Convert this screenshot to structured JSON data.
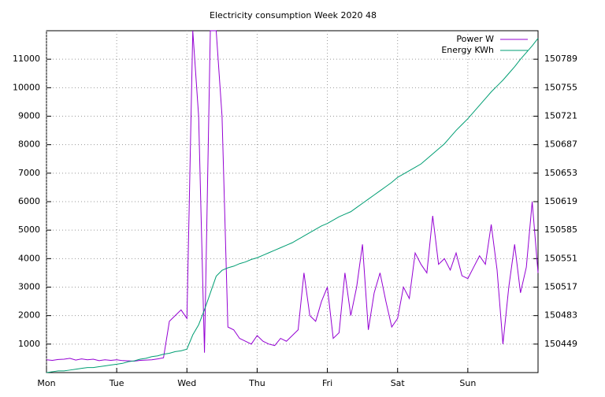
{
  "chart_data": {
    "type": "line",
    "title": "Electricity consumption Week 2020 48",
    "x": [
      0,
      2,
      4,
      6,
      8,
      10,
      12,
      14,
      16,
      18,
      20,
      22,
      24,
      26,
      28,
      30,
      32,
      34,
      36,
      38,
      40,
      42,
      44,
      46,
      48,
      50,
      52,
      54,
      56,
      58,
      60,
      62,
      64,
      66,
      68,
      70,
      72,
      74,
      76,
      78,
      80,
      82,
      84,
      86,
      88,
      90,
      92,
      94,
      96,
      98,
      100,
      102,
      104,
      106,
      108,
      110,
      112,
      114,
      116,
      118,
      120,
      122,
      124,
      126,
      128,
      130,
      132,
      134,
      136,
      138,
      140,
      142,
      144,
      146,
      148,
      150,
      152,
      154,
      156,
      158,
      160,
      162,
      164,
      166,
      168
    ],
    "series": [
      {
        "name": "Power W",
        "color": "#9400d3",
        "values": [
          450,
          430,
          460,
          470,
          500,
          440,
          480,
          450,
          470,
          420,
          450,
          430,
          450,
          420,
          410,
          400,
          430,
          440,
          450,
          480,
          520,
          1800,
          2000,
          2200,
          1900,
          12000,
          9000,
          700,
          12000,
          12000,
          9000,
          1600,
          1500,
          1200,
          1100,
          1000,
          1300,
          1100,
          1000,
          950,
          1200,
          1100,
          1300,
          1500,
          3500,
          2000,
          1800,
          2500,
          3000,
          1200,
          1400,
          3500,
          2000,
          3000,
          4500,
          1500,
          2800,
          3500,
          2500,
          1600,
          1900,
          3000,
          2600,
          4200,
          3800,
          3500,
          5500,
          3800,
          4000,
          3600,
          4200,
          3400,
          3300,
          3700,
          4100,
          3800,
          5200,
          3600,
          1000,
          3000,
          4500,
          2800,
          3700,
          6000,
          3500
        ]
      },
      {
        "name": "Energy KWh",
        "color": "#009e73",
        "axis": "y2",
        "values": [
          150415,
          150416,
          150417,
          150417,
          150418,
          150419,
          150420,
          150421,
          150421,
          150422,
          150423,
          150424,
          150425,
          150426,
          150428,
          150429,
          150431,
          150432,
          150434,
          150435,
          150437,
          150438,
          150440,
          150441,
          150443,
          150460,
          150472,
          150490,
          150510,
          150530,
          150537,
          150540,
          150542,
          150545,
          150547,
          150550,
          150552,
          150555,
          150558,
          150561,
          150564,
          150567,
          150570,
          150574,
          150578,
          150582,
          150586,
          150590,
          150593,
          150597,
          150601,
          150604,
          150607,
          150612,
          150617,
          150622,
          150627,
          150632,
          150637,
          150642,
          150648,
          150652,
          150656,
          150660,
          150664,
          150670,
          150676,
          150682,
          150688,
          150696,
          150704,
          150711,
          150718,
          150726,
          150734,
          150742,
          150750,
          150757,
          150764,
          150772,
          150780,
          150789,
          150797,
          150805,
          150814
        ]
      }
    ],
    "xlim": [
      0,
      168
    ],
    "xticks": [
      {
        "value": 0,
        "label": "Mon"
      },
      {
        "value": 24,
        "label": "Tue"
      },
      {
        "value": 48,
        "label": "Wed"
      },
      {
        "value": 72,
        "label": "Thu"
      },
      {
        "value": 96,
        "label": "Fri"
      },
      {
        "value": 120,
        "label": "Sat"
      },
      {
        "value": 144,
        "label": "Sun"
      }
    ],
    "ylim": [
      0,
      12000
    ],
    "yticks": [
      1000,
      2000,
      3000,
      4000,
      5000,
      6000,
      7000,
      8000,
      9000,
      10000,
      11000
    ],
    "y2lim": [
      150415,
      150823
    ],
    "y2ticks": [
      150449,
      150483,
      150517,
      150551,
      150585,
      150619,
      150653,
      150687,
      150721,
      150755,
      150789
    ],
    "grid": true,
    "legend": "top-right"
  }
}
